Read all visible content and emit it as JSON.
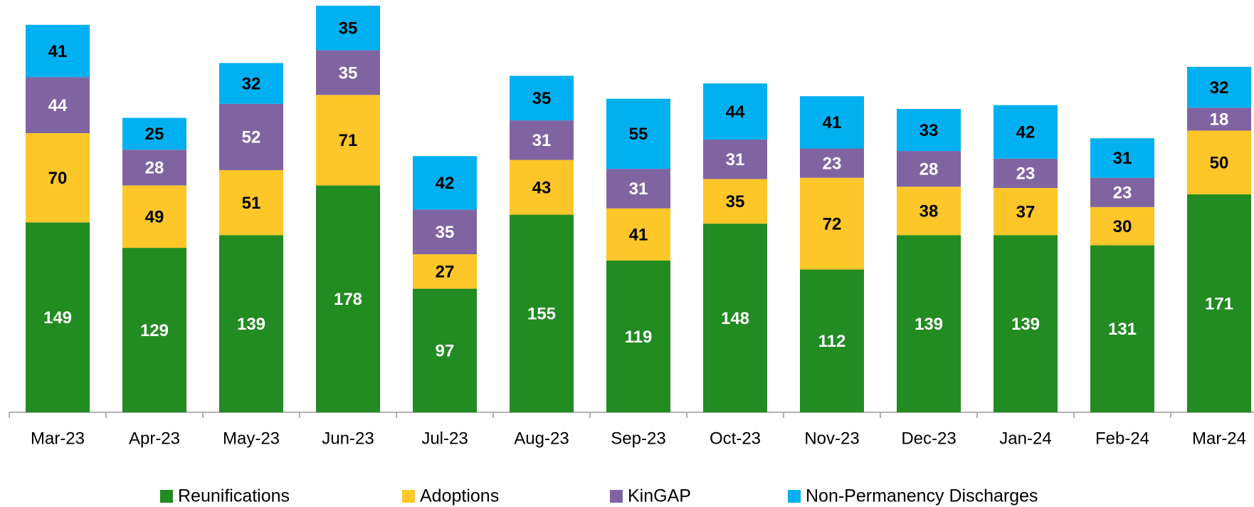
{
  "chart_data": {
    "type": "stacked_bar",
    "categories": [
      "Mar-23",
      "Apr-23",
      "May-23",
      "Jun-23",
      "Jul-23",
      "Aug-23",
      "Sep-23",
      "Oct-23",
      "Nov-23",
      "Dec-23",
      "Jan-24",
      "Feb-24",
      "Mar-24"
    ],
    "series": [
      {
        "name": "Reunifications",
        "color": "#228b22",
        "label_color": "#ffffff",
        "values": [
          149,
          129,
          139,
          178,
          97,
          155,
          119,
          148,
          112,
          139,
          139,
          131,
          171
        ]
      },
      {
        "name": "Adoptions",
        "color": "#fdc629",
        "label_color": "#000000",
        "values": [
          70,
          49,
          51,
          71,
          27,
          43,
          41,
          35,
          72,
          38,
          37,
          30,
          50
        ]
      },
      {
        "name": "KinGAP",
        "color": "#8064a2",
        "label_color": "#ffffff",
        "values": [
          44,
          28,
          52,
          35,
          35,
          31,
          31,
          31,
          23,
          28,
          23,
          23,
          18
        ]
      },
      {
        "name": "Non-Permanency Discharges",
        "color": "#00b0f0",
        "label_color": "#000000",
        "values": [
          41,
          25,
          32,
          35,
          42,
          35,
          55,
          44,
          41,
          33,
          42,
          31,
          32
        ]
      }
    ],
    "legend": "bottom"
  }
}
